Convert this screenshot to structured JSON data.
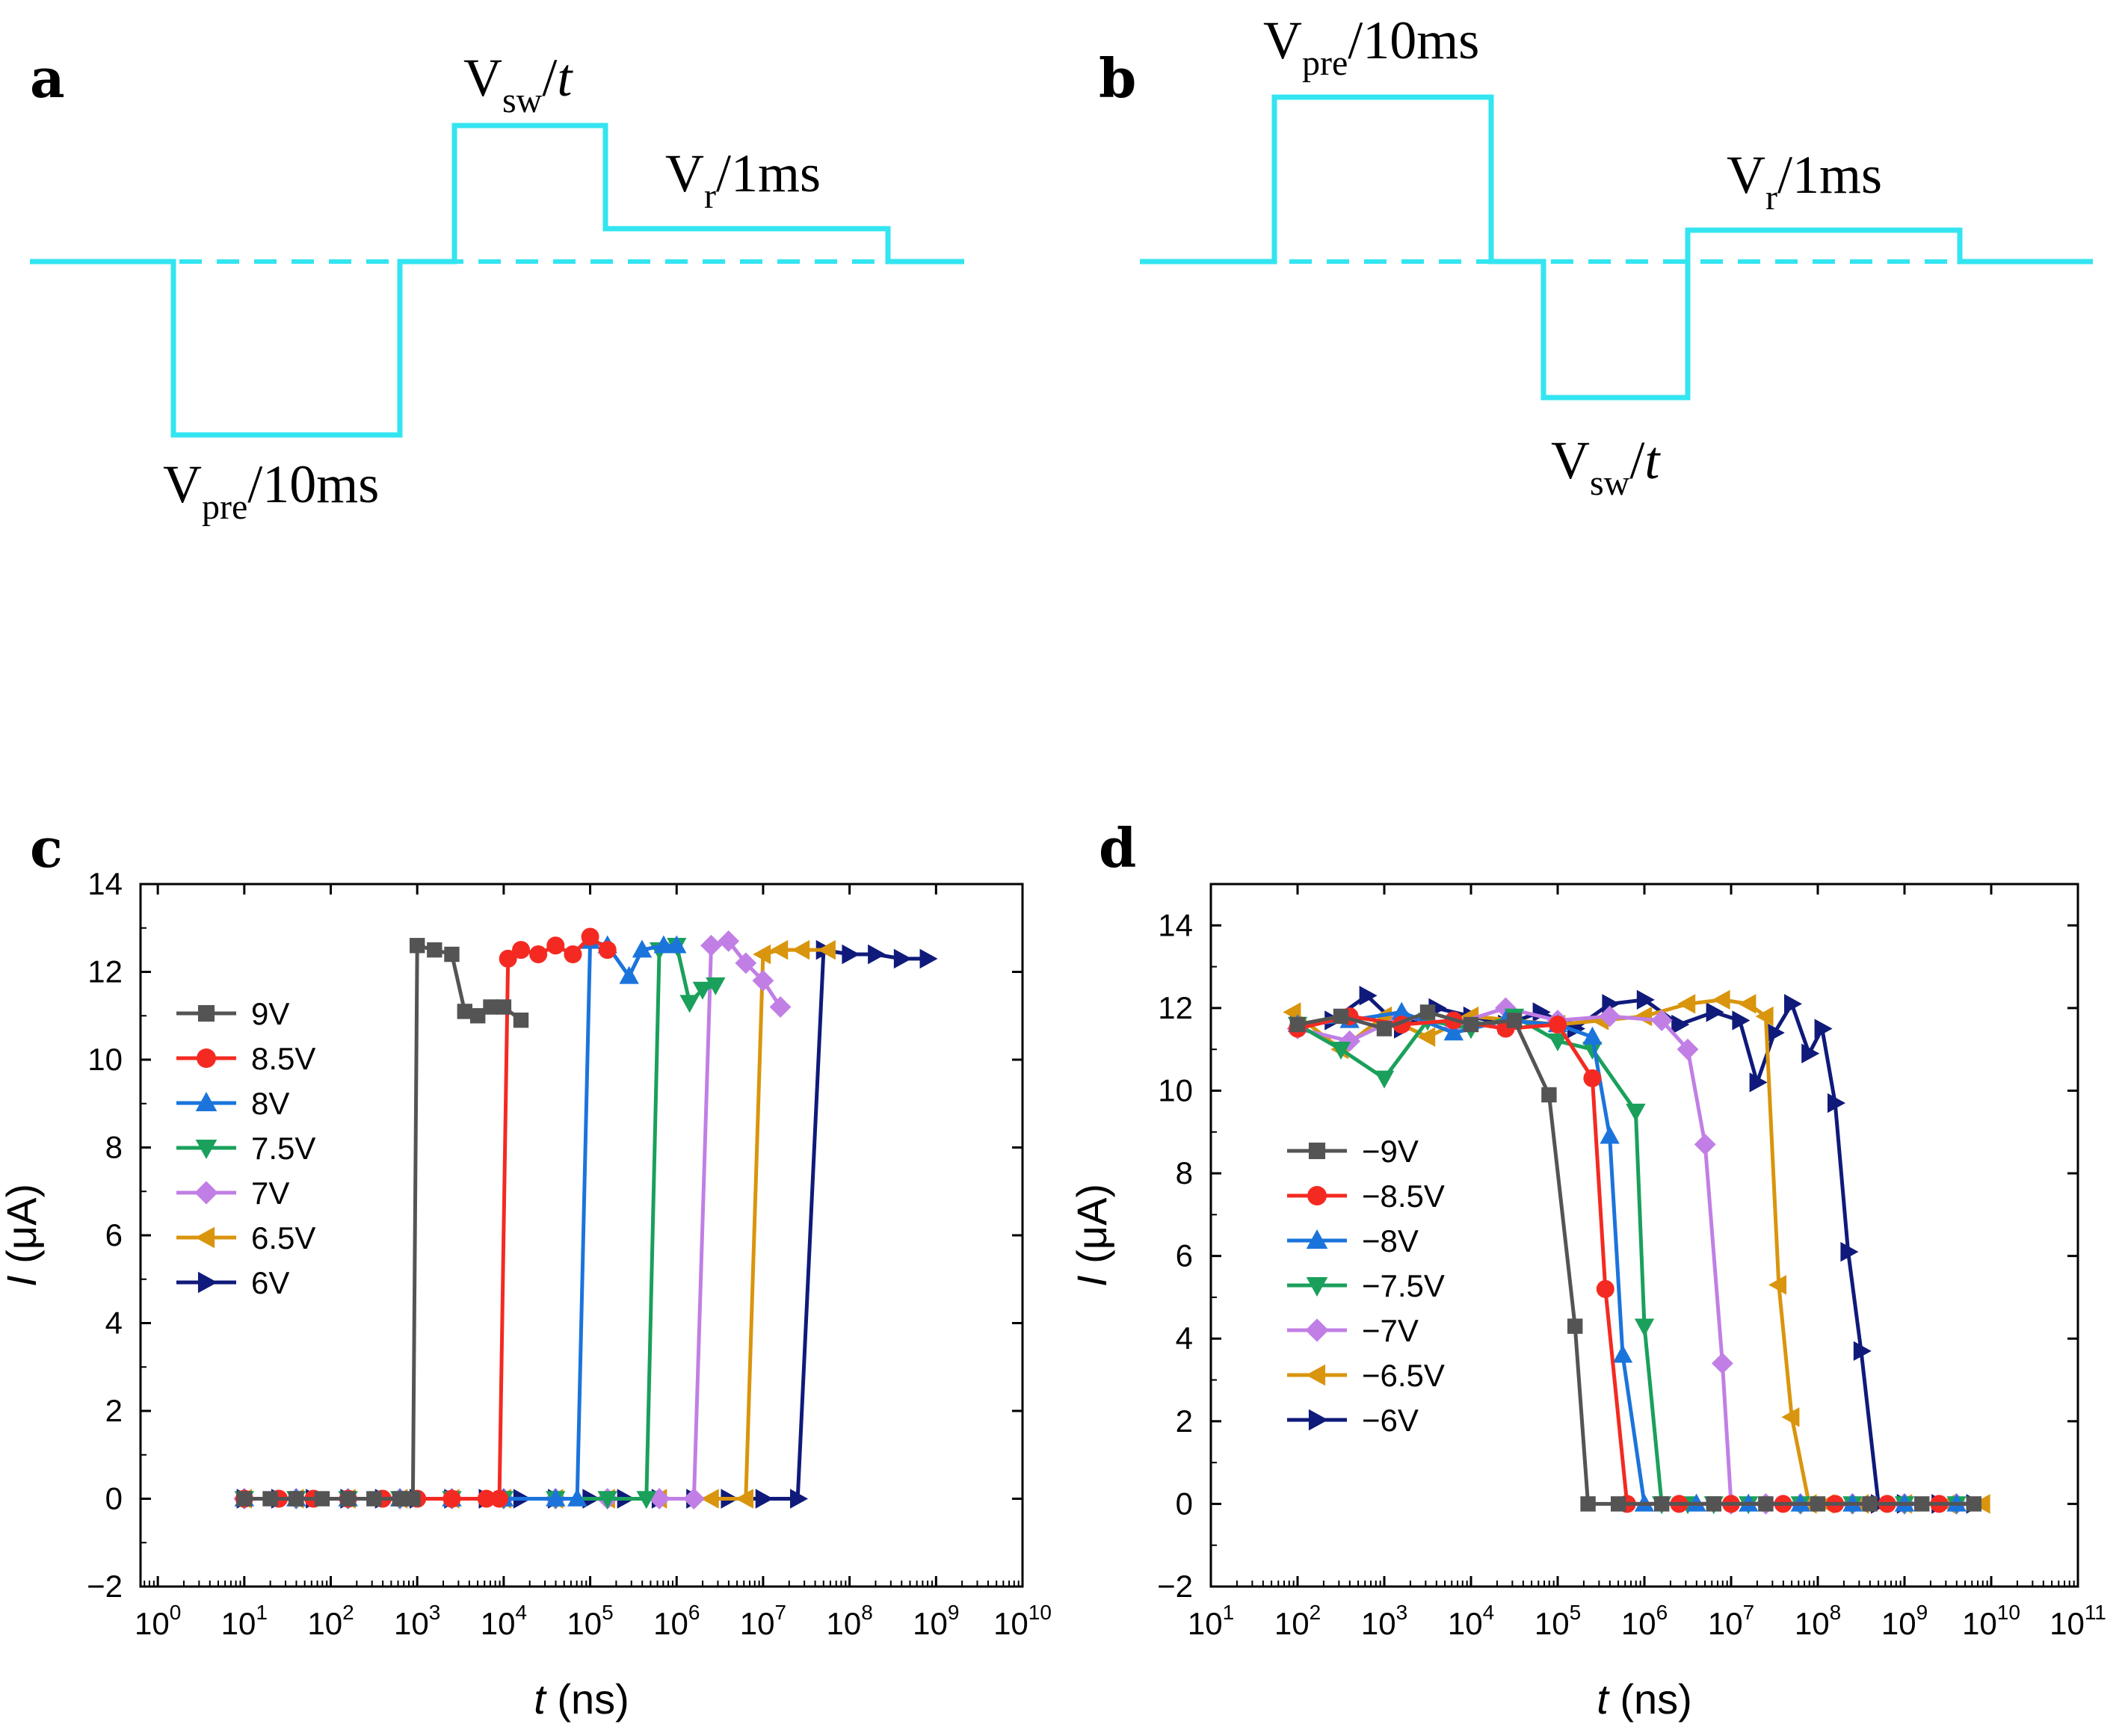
{
  "panel_labels": {
    "a": "a",
    "b": "b",
    "c": "c",
    "d": "d"
  },
  "waveforms": {
    "color": "#33E5F0",
    "a": {
      "pre": {
        "base": "V",
        "sub": "pre",
        "rest": "/10ms"
      },
      "sw": {
        "base": "V",
        "sub": "sw",
        "rest": "/",
        "italic": "t"
      },
      "r": {
        "base": "V",
        "sub": "r",
        "rest": "/1ms"
      }
    },
    "b": {
      "pre": {
        "base": "V",
        "sub": "pre",
        "rest": "/10ms"
      },
      "sw": {
        "base": "V",
        "sub": "sw",
        "rest": "/",
        "italic": "t"
      },
      "r": {
        "base": "V",
        "sub": "r",
        "rest": "/1ms"
      }
    }
  },
  "chart_data": [
    {
      "type": "line",
      "panel": "c",
      "xscale": "log",
      "xlim_exp": [
        -0.2,
        10
      ],
      "ylim": [
        -2,
        14
      ],
      "xlabel_italic": "t",
      "xlabel_rest": " (ns)",
      "ylabel_italic": "I",
      "ylabel_rest": " (μA)",
      "xticks": [
        {
          "base": "10",
          "exp": "0"
        },
        {
          "base": "10",
          "exp": "1"
        },
        {
          "base": "10",
          "exp": "2"
        },
        {
          "base": "10",
          "exp": "3"
        },
        {
          "base": "10",
          "exp": "4"
        },
        {
          "base": "10",
          "exp": "5"
        },
        {
          "base": "10",
          "exp": "6"
        },
        {
          "base": "10",
          "exp": "7"
        },
        {
          "base": "10",
          "exp": "8"
        },
        {
          "base": "10",
          "exp": "9"
        },
        {
          "base": "10",
          "exp": "10"
        }
      ],
      "yticks": [
        "−2",
        "0",
        "2",
        "4",
        "6",
        "8",
        "10",
        "12",
        "14"
      ],
      "legend_position": "left",
      "series": [
        {
          "name": "9V",
          "color": "#545454",
          "marker": "square",
          "x": [
            1,
            1.3,
            1.6,
            1.9,
            2.2,
            2.5,
            2.8,
            2.95,
            3.0,
            3.2,
            3.4,
            3.55,
            3.7,
            3.85,
            4.0,
            4.2
          ],
          "y": [
            0,
            0,
            0,
            0,
            0,
            0,
            0,
            0,
            12.6,
            12.5,
            12.4,
            11.1,
            11.0,
            11.2,
            11.2,
            10.9
          ]
        },
        {
          "name": "8.5V",
          "color": "#F42A22",
          "marker": "circle",
          "x": [
            1,
            1.4,
            1.8,
            2.2,
            2.6,
            3.0,
            3.4,
            3.8,
            3.95,
            4.05,
            4.2,
            4.4,
            4.6,
            4.8,
            5.0,
            5.2
          ],
          "y": [
            0,
            0,
            0,
            0,
            0,
            0,
            0,
            0,
            0,
            12.3,
            12.5,
            12.4,
            12.6,
            12.4,
            12.8,
            12.5
          ]
        },
        {
          "name": "8V",
          "color": "#1B74DC",
          "marker": "triangle-up",
          "x": [
            1,
            1.6,
            2.2,
            2.8,
            3.4,
            4.0,
            4.6,
            4.85,
            5.0,
            5.2,
            5.45,
            5.6,
            5.85,
            6.0
          ],
          "y": [
            0,
            0,
            0,
            0,
            0,
            0,
            0,
            0,
            12.7,
            12.6,
            11.9,
            12.5,
            12.6,
            12.6
          ]
        },
        {
          "name": "7.5V",
          "color": "#1AA05B",
          "marker": "triangle-down",
          "x": [
            1,
            1.6,
            2.2,
            2.8,
            3.4,
            4.0,
            4.6,
            5.2,
            5.65,
            5.8,
            6.0,
            6.15,
            6.3,
            6.45
          ],
          "y": [
            0,
            0,
            0,
            0,
            0,
            0,
            0,
            0,
            0,
            12.5,
            12.6,
            11.3,
            11.6,
            11.7
          ]
        },
        {
          "name": "7V",
          "color": "#C17FE5",
          "marker": "diamond",
          "x": [
            1,
            1.6,
            2.2,
            2.8,
            3.4,
            4.0,
            4.6,
            5.2,
            5.8,
            6.2,
            6.4,
            6.6,
            6.8,
            7.0,
            7.2
          ],
          "y": [
            0,
            0,
            0,
            0,
            0,
            0,
            0,
            0,
            0,
            0,
            12.6,
            12.7,
            12.2,
            11.8,
            11.2
          ]
        },
        {
          "name": "6.5V",
          "color": "#D9950D",
          "marker": "triangle-left",
          "x": [
            1,
            1.6,
            2.2,
            2.8,
            3.4,
            4.0,
            4.6,
            5.2,
            5.8,
            6.4,
            6.8,
            7.0,
            7.2,
            7.45,
            7.75
          ],
          "y": [
            0,
            0,
            0,
            0,
            0,
            0,
            0,
            0,
            0,
            0,
            0,
            12.4,
            12.5,
            12.5,
            12.5
          ]
        },
        {
          "name": "6V",
          "color": "#0F1A7A",
          "marker": "triangle-right",
          "x": [
            1,
            1.4,
            1.8,
            2.2,
            2.6,
            3.0,
            3.4,
            3.8,
            4.2,
            4.6,
            5.0,
            5.4,
            5.8,
            6.2,
            6.6,
            7.0,
            7.4,
            7.7,
            8.0,
            8.3,
            8.6,
            8.9
          ],
          "y": [
            0,
            0,
            0,
            0,
            0,
            0,
            0,
            0,
            0,
            0,
            0,
            0,
            0,
            0,
            0,
            0,
            0,
            12.5,
            12.4,
            12.4,
            12.3,
            12.3
          ]
        }
      ]
    },
    {
      "type": "line",
      "panel": "d",
      "xscale": "log",
      "xlim_exp": [
        1,
        11
      ],
      "ylim": [
        -2,
        15
      ],
      "xlabel_italic": "t",
      "xlabel_rest": " (ns)",
      "ylabel_italic": "I",
      "ylabel_rest": " (μA)",
      "xticks": [
        {
          "base": "10",
          "exp": "1"
        },
        {
          "base": "10",
          "exp": "2"
        },
        {
          "base": "10",
          "exp": "3"
        },
        {
          "base": "10",
          "exp": "4"
        },
        {
          "base": "10",
          "exp": "5"
        },
        {
          "base": "10",
          "exp": "6"
        },
        {
          "base": "10",
          "exp": "7"
        },
        {
          "base": "10",
          "exp": "8"
        },
        {
          "base": "10",
          "exp": "9"
        },
        {
          "base": "10",
          "exp": "10"
        },
        {
          "base": "10",
          "exp": "11"
        }
      ],
      "yticks": [
        "−2",
        "0",
        "2",
        "4",
        "6",
        "8",
        "10",
        "12",
        "14"
      ],
      "legend_position": "left",
      "series": [
        {
          "name": "−9V",
          "color": "#545454",
          "marker": "square",
          "x": [
            2,
            2.5,
            3.0,
            3.5,
            4.0,
            4.5,
            4.9,
            5.2,
            5.35,
            5.7,
            6.2,
            6.8,
            7.4,
            8.0,
            8.6,
            9.2,
            9.8
          ],
          "y": [
            11.6,
            11.8,
            11.5,
            11.9,
            11.6,
            11.7,
            9.9,
            4.3,
            0,
            0,
            0,
            0,
            0,
            0,
            0,
            0,
            0
          ]
        },
        {
          "name": "−8.5V",
          "color": "#F42A22",
          "marker": "circle",
          "x": [
            2,
            2.6,
            3.2,
            3.8,
            4.4,
            5.0,
            5.4,
            5.55,
            5.8,
            6.4,
            7.0,
            7.6,
            8.2,
            8.8,
            9.4
          ],
          "y": [
            11.5,
            11.8,
            11.6,
            11.7,
            11.5,
            11.6,
            10.3,
            5.2,
            0,
            0,
            0,
            0,
            0,
            0,
            0
          ]
        },
        {
          "name": "−8V",
          "color": "#1B74DC",
          "marker": "triangle-up",
          "x": [
            2,
            2.6,
            3.2,
            3.8,
            4.4,
            5.0,
            5.4,
            5.6,
            5.75,
            6.0,
            6.6,
            7.2,
            7.8,
            8.4,
            9.0,
            9.6
          ],
          "y": [
            11.6,
            11.7,
            11.9,
            11.4,
            11.7,
            11.6,
            11.3,
            8.9,
            3.6,
            0,
            0,
            0,
            0,
            0,
            0,
            0
          ]
        },
        {
          "name": "−7.5V",
          "color": "#1AA05B",
          "marker": "triangle-down",
          "x": [
            2,
            2.5,
            3.0,
            3.5,
            4.0,
            4.5,
            5.0,
            5.4,
            5.9,
            6.0,
            6.2,
            6.5,
            6.8,
            7.2,
            7.8,
            8.4,
            9.0,
            9.6
          ],
          "y": [
            11.6,
            11.0,
            10.3,
            11.7,
            11.5,
            11.8,
            11.2,
            11.0,
            9.5,
            4.3,
            0,
            0,
            0,
            0,
            0,
            0,
            0,
            0
          ]
        },
        {
          "name": "−7V",
          "color": "#C17FE5",
          "marker": "diamond",
          "x": [
            2,
            2.6,
            3.2,
            3.8,
            4.4,
            5.0,
            5.6,
            6.2,
            6.5,
            6.7,
            6.9,
            7.0,
            7.4,
            7.8,
            8.4,
            9.0,
            9.6
          ],
          "y": [
            11.5,
            11.2,
            11.8,
            11.6,
            12.0,
            11.7,
            11.8,
            11.7,
            11.0,
            8.7,
            3.4,
            0,
            0,
            0,
            0,
            0,
            0
          ]
        },
        {
          "name": "−6.5V",
          "color": "#D9950D",
          "marker": "triangle-left",
          "x": [
            1.95,
            2.5,
            3.0,
            3.5,
            4.0,
            4.5,
            5.0,
            5.5,
            6.0,
            6.5,
            6.9,
            7.2,
            7.4,
            7.55,
            7.7,
            7.9,
            8.1,
            8.5,
            9.0,
            9.5,
            9.9
          ],
          "y": [
            11.9,
            11.0,
            11.8,
            11.3,
            11.8,
            11.7,
            11.6,
            11.7,
            11.8,
            12.1,
            12.2,
            12.1,
            11.8,
            5.3,
            2.1,
            0,
            0,
            0,
            0,
            0,
            0
          ]
        },
        {
          "name": "−6V",
          "color": "#0F1A7A",
          "marker": "triangle-right",
          "x": [
            2,
            2.4,
            2.8,
            3.2,
            3.6,
            4.0,
            4.4,
            4.8,
            5.2,
            5.6,
            6.0,
            6.4,
            6.8,
            7.1,
            7.3,
            7.5,
            7.7,
            7.9,
            8.05,
            8.2,
            8.35,
            8.5,
            8.7,
            9.0,
            9.4,
            9.8
          ],
          "y": [
            11.6,
            11.7,
            12.3,
            11.5,
            12.0,
            11.8,
            11.6,
            11.9,
            11.5,
            12.1,
            12.2,
            11.6,
            11.9,
            11.7,
            10.2,
            11.4,
            12.1,
            10.9,
            11.5,
            9.7,
            6.1,
            3.7,
            0,
            0,
            0,
            0
          ]
        }
      ]
    }
  ]
}
